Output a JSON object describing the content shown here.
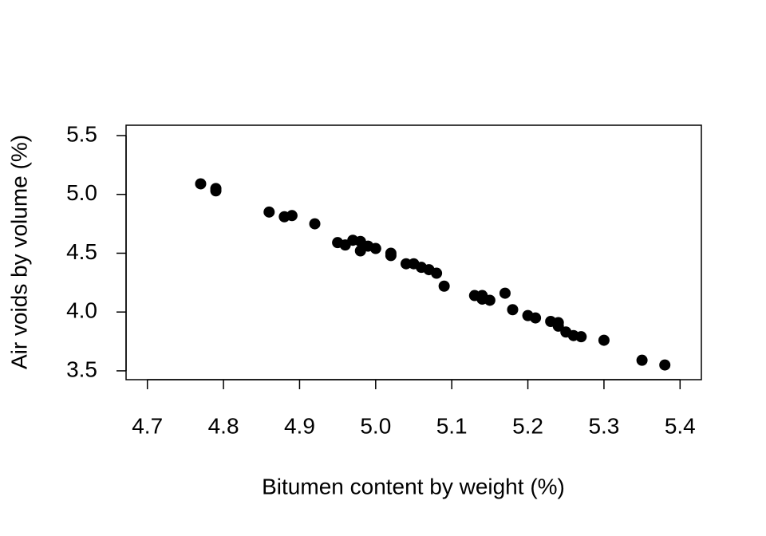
{
  "chart_data": {
    "type": "scatter",
    "x_label": "Bitumen content by weight (%)",
    "y_label": "Air voids by volume (%)",
    "color": "#000000",
    "x": [
      4.77,
      4.79,
      4.79,
      4.86,
      4.88,
      4.89,
      4.92,
      4.95,
      4.96,
      4.97,
      4.98,
      4.98,
      4.99,
      5.0,
      5.02,
      5.02,
      5.04,
      5.05,
      5.06,
      5.07,
      5.08,
      5.09,
      5.13,
      5.14,
      5.14,
      5.15,
      5.17,
      5.18,
      5.2,
      5.21,
      5.23,
      5.24,
      5.24,
      5.25,
      5.26,
      5.27,
      5.3,
      5.35,
      5.38
    ],
    "values": [
      5.09,
      5.05,
      5.03,
      4.85,
      4.81,
      4.82,
      4.75,
      4.59,
      4.57,
      4.61,
      4.6,
      4.52,
      4.56,
      4.54,
      4.5,
      4.48,
      4.41,
      4.41,
      4.38,
      4.36,
      4.33,
      4.22,
      4.14,
      4.14,
      4.11,
      4.1,
      4.16,
      4.02,
      3.97,
      3.95,
      3.92,
      3.91,
      3.88,
      3.83,
      3.8,
      3.79,
      3.76,
      3.59,
      3.55
    ],
    "xlim": [
      4.672,
      5.428
    ],
    "ylim": [
      3.425,
      5.588
    ],
    "xticks": [
      4.7,
      4.8,
      4.9,
      {
        "value": 5.0,
        "label": "5.0"
      },
      5.1,
      5.2,
      5.3,
      5.4
    ],
    "yticks": [
      3.5,
      {
        "value": 4.0,
        "label": "4.0"
      },
      4.5,
      {
        "value": 5.0,
        "label": "5.0"
      },
      5.5
    ]
  }
}
